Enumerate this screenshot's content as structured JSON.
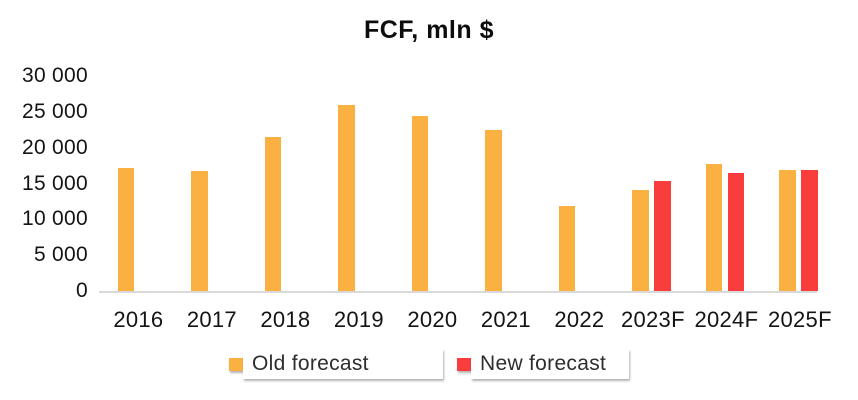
{
  "chart_data": {
    "type": "bar",
    "title": "FCF, mln $",
    "categories": [
      "2016",
      "2017",
      "2018",
      "2019",
      "2020",
      "2021",
      "2022",
      "2023F",
      "2024F",
      "2025F"
    ],
    "series": [
      {
        "name": "Old forecast",
        "color": "#FBB042",
        "values": [
          17100,
          16700,
          21500,
          26000,
          24400,
          22500,
          11900,
          14100,
          17700,
          16900
        ]
      },
      {
        "name": "New forecast",
        "color": "#F93C3C",
        "values": [
          null,
          null,
          null,
          null,
          null,
          null,
          null,
          15300,
          16500,
          16900
        ]
      }
    ],
    "ylim": [
      0,
      30000
    ],
    "ytick_step": 5000,
    "ytick_labels": [
      "0",
      "5 000",
      "10 000",
      "15 000",
      "20 000",
      "25 000",
      "30 000"
    ],
    "grid": false,
    "legend_position": "bottom",
    "axis_line_color": "#D9D9D9",
    "text_color": "#141414",
    "background": "#FFFFFF"
  }
}
